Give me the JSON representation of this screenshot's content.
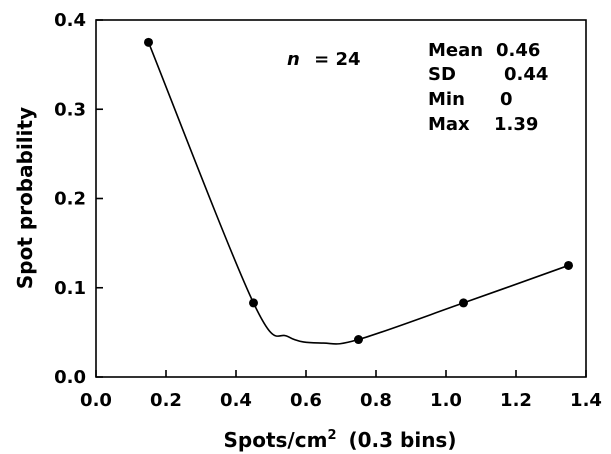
{
  "chart_data": {
    "type": "scatter",
    "xlabel": "Spots/cm",
    "xlabel_superscript": "2",
    "xlabel_suffix": "(0.3 bins)",
    "ylabel": "Spot probability",
    "xlim": [
      0.0,
      1.4
    ],
    "ylim": [
      0.0,
      0.4
    ],
    "x_ticks": [
      0.0,
      0.2,
      0.4,
      0.6,
      0.8,
      1.0,
      1.2,
      1.4
    ],
    "x_tick_labels": [
      "0.0",
      "0.2",
      "0.4",
      "0.6",
      "0.8",
      "1.0",
      "1.2",
      "1.4"
    ],
    "y_ticks": [
      0.0,
      0.1,
      0.2,
      0.3,
      0.4
    ],
    "y_tick_labels": [
      "0.0",
      "0.1",
      "0.2",
      "0.3",
      "0.4"
    ],
    "grid": false,
    "legend": "none",
    "points": {
      "x": [
        0.15,
        0.45,
        0.75,
        1.05,
        1.35
      ],
      "y": [
        0.375,
        0.083,
        0.042,
        0.083,
        0.125
      ]
    },
    "fit_curve": {
      "x": [
        0.15,
        0.45,
        0.55,
        0.65,
        0.75,
        1.05,
        1.35
      ],
      "y": [
        0.375,
        0.083,
        0.045,
        0.038,
        0.042,
        0.083,
        0.125
      ]
    },
    "annotation_n": {
      "label": "n",
      "text": "= 24"
    },
    "stats": [
      {
        "label": "Mean",
        "value": "0.46"
      },
      {
        "label": "SD",
        "value": "0.44"
      },
      {
        "label": "Min",
        "value": "0"
      },
      {
        "label": "Max",
        "value": "1.39"
      }
    ]
  }
}
